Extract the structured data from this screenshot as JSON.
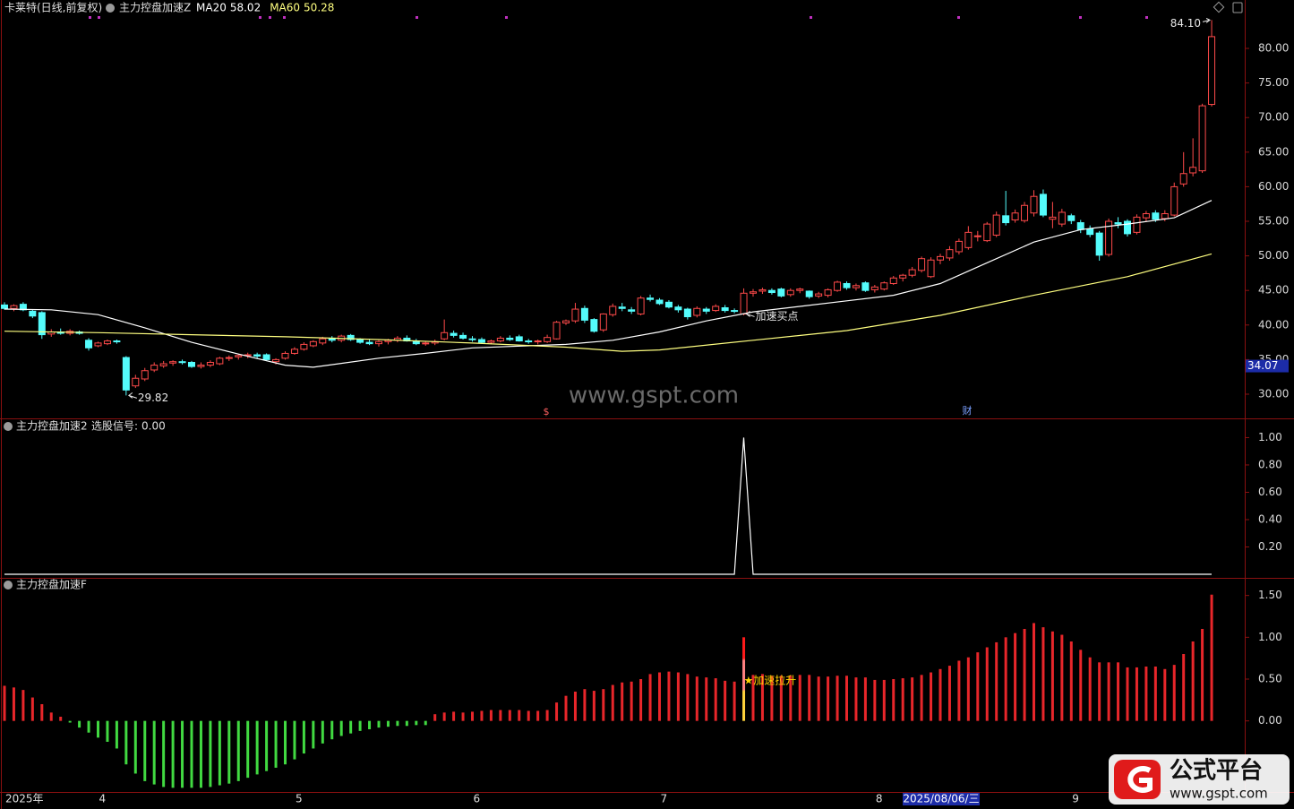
{
  "chart_data": [
    {
      "type": "candlestick",
      "title": "卡莱特(日线,前复权)",
      "indicator": "主力控盘加速Z",
      "ohlc": [
        [
          42.9,
          43.3,
          42.2,
          42.4
        ],
        [
          42.4,
          43.0,
          42.0,
          42.8
        ],
        [
          43.0,
          43.3,
          42.0,
          42.2
        ],
        [
          42.0,
          42.3,
          41.0,
          41.3
        ],
        [
          41.8,
          42.0,
          38.0,
          38.6
        ],
        [
          38.7,
          39.4,
          38.3,
          39.0
        ],
        [
          39.0,
          39.5,
          38.6,
          38.8
        ],
        [
          38.8,
          39.4,
          38.5,
          39.1
        ],
        [
          39.0,
          39.2,
          38.6,
          38.8
        ],
        [
          37.8,
          38.1,
          36.3,
          36.7
        ],
        [
          37.0,
          37.6,
          36.8,
          37.4
        ],
        [
          37.3,
          37.9,
          37.1,
          37.7
        ],
        [
          37.7,
          37.9,
          37.3,
          37.6
        ],
        [
          35.3,
          35.5,
          29.82,
          30.6
        ],
        [
          31.2,
          32.8,
          30.9,
          32.3
        ],
        [
          32.2,
          33.8,
          31.9,
          33.4
        ],
        [
          33.5,
          34.6,
          33.2,
          34.2
        ],
        [
          34.1,
          34.8,
          33.8,
          34.4
        ],
        [
          34.5,
          34.9,
          34.1,
          34.7
        ],
        [
          34.7,
          35.0,
          34.3,
          34.6
        ],
        [
          34.6,
          34.8,
          33.8,
          34.0
        ],
        [
          34.0,
          34.6,
          33.7,
          34.2
        ],
        [
          34.2,
          34.9,
          33.9,
          34.6
        ],
        [
          34.4,
          35.4,
          34.2,
          35.2
        ],
        [
          35.2,
          35.6,
          34.8,
          35.3
        ],
        [
          35.4,
          35.8,
          35.0,
          35.6
        ],
        [
          35.6,
          36.0,
          35.2,
          35.7
        ],
        [
          35.7,
          36.0,
          35.1,
          35.5
        ],
        [
          35.7,
          35.9,
          34.8,
          35.0
        ],
        [
          34.7,
          35.2,
          34.3,
          35.0
        ],
        [
          35.2,
          36.2,
          35.0,
          35.9
        ],
        [
          35.9,
          36.8,
          35.7,
          36.5
        ],
        [
          36.5,
          37.5,
          36.3,
          37.2
        ],
        [
          37.0,
          37.8,
          36.8,
          37.6
        ],
        [
          37.4,
          38.3,
          37.1,
          38.0
        ],
        [
          38.0,
          38.4,
          37.5,
          37.8
        ],
        [
          37.8,
          38.6,
          37.5,
          38.4
        ],
        [
          38.5,
          38.7,
          37.7,
          37.9
        ],
        [
          37.9,
          38.1,
          37.3,
          37.5
        ],
        [
          37.5,
          37.9,
          37.1,
          37.3
        ],
        [
          37.3,
          37.8,
          36.9,
          37.6
        ],
        [
          37.6,
          38.0,
          37.2,
          37.8
        ],
        [
          37.8,
          38.4,
          37.5,
          38.1
        ],
        [
          38.1,
          38.5,
          37.6,
          37.7
        ],
        [
          37.7,
          38.0,
          37.1,
          37.3
        ],
        [
          37.3,
          37.7,
          37.0,
          37.4
        ],
        [
          37.4,
          37.9,
          37.1,
          37.6
        ],
        [
          38.0,
          40.8,
          37.8,
          38.9
        ],
        [
          38.8,
          39.2,
          38.2,
          38.5
        ],
        [
          38.5,
          38.9,
          37.9,
          38.1
        ],
        [
          38.0,
          38.4,
          37.6,
          37.9
        ],
        [
          37.9,
          38.2,
          37.3,
          37.5
        ],
        [
          37.5,
          37.9,
          37.2,
          37.7
        ],
        [
          37.7,
          38.4,
          37.5,
          38.1
        ],
        [
          38.1,
          38.5,
          37.7,
          37.9
        ],
        [
          38.3,
          38.6,
          37.6,
          37.7
        ],
        [
          37.7,
          38.0,
          37.3,
          37.6
        ],
        [
          37.6,
          37.9,
          37.2,
          37.7
        ],
        [
          37.6,
          38.6,
          37.4,
          38.2
        ],
        [
          38.0,
          40.6,
          37.9,
          40.4
        ],
        [
          40.3,
          40.8,
          40.0,
          40.6
        ],
        [
          40.6,
          43.2,
          40.3,
          42.3
        ],
        [
          42.4,
          42.8,
          40.3,
          40.7
        ],
        [
          40.8,
          41.0,
          38.9,
          39.1
        ],
        [
          39.3,
          41.7,
          39.0,
          41.6
        ],
        [
          41.5,
          43.1,
          41.2,
          42.7
        ],
        [
          42.6,
          43.2,
          42.0,
          42.4
        ],
        [
          42.2,
          42.6,
          41.6,
          42.0
        ],
        [
          41.6,
          44.2,
          41.4,
          43.9
        ],
        [
          43.9,
          44.4,
          43.4,
          43.7
        ],
        [
          43.6,
          43.9,
          42.9,
          43.1
        ],
        [
          43.3,
          43.6,
          42.4,
          42.6
        ],
        [
          42.6,
          42.9,
          41.8,
          42.2
        ],
        [
          42.3,
          42.5,
          40.8,
          41.2
        ],
        [
          41.4,
          42.7,
          41.1,
          42.4
        ],
        [
          42.3,
          42.6,
          41.6,
          42.0
        ],
        [
          42.1,
          43.0,
          41.9,
          42.7
        ],
        [
          42.5,
          42.9,
          41.8,
          42.1
        ],
        [
          42.1,
          42.4,
          41.7,
          42.0
        ],
        [
          41.6,
          45.3,
          41.4,
          44.6
        ],
        [
          44.6,
          45.2,
          44.1,
          44.8
        ],
        [
          44.9,
          45.4,
          44.5,
          45.1
        ],
        [
          45.0,
          45.3,
          44.4,
          44.7
        ],
        [
          45.2,
          45.4,
          44.0,
          44.2
        ],
        [
          44.4,
          45.3,
          44.1,
          45.0
        ],
        [
          45.0,
          45.4,
          44.6,
          45.2
        ],
        [
          44.9,
          45.0,
          43.8,
          44.1
        ],
        [
          44.2,
          44.8,
          43.9,
          44.5
        ],
        [
          44.3,
          45.3,
          44.0,
          45.1
        ],
        [
          45.0,
          46.4,
          44.8,
          46.2
        ],
        [
          46.0,
          46.3,
          45.1,
          45.4
        ],
        [
          45.4,
          46.0,
          45.0,
          45.7
        ],
        [
          46.1,
          46.3,
          44.8,
          45.0
        ],
        [
          45.1,
          45.8,
          44.7,
          45.5
        ],
        [
          45.2,
          46.3,
          45.0,
          46.1
        ],
        [
          46.0,
          47.1,
          45.8,
          46.8
        ],
        [
          46.8,
          47.4,
          46.3,
          47.2
        ],
        [
          47.2,
          48.4,
          46.9,
          48.0
        ],
        [
          47.9,
          49.9,
          47.6,
          49.6
        ],
        [
          47.0,
          49.8,
          46.8,
          49.4
        ],
        [
          49.4,
          50.3,
          48.8,
          49.9
        ],
        [
          49.7,
          51.4,
          49.3,
          50.9
        ],
        [
          50.6,
          52.5,
          50.2,
          52.1
        ],
        [
          51.2,
          54.3,
          50.9,
          53.4
        ],
        [
          52.8,
          53.6,
          52.1,
          52.9
        ],
        [
          52.2,
          54.9,
          52.0,
          54.6
        ],
        [
          53.0,
          56.4,
          52.7,
          55.9
        ],
        [
          55.8,
          59.4,
          54.4,
          54.8
        ],
        [
          55.2,
          56.7,
          54.8,
          56.2
        ],
        [
          55.1,
          57.8,
          54.8,
          57.3
        ],
        [
          56.2,
          59.5,
          55.7,
          58.6
        ],
        [
          58.9,
          59.6,
          55.6,
          55.9
        ],
        [
          55.3,
          57.8,
          54.0,
          55.6
        ],
        [
          54.6,
          56.8,
          54.2,
          56.3
        ],
        [
          55.8,
          56.1,
          54.6,
          55.1
        ],
        [
          54.8,
          55.2,
          53.3,
          53.8
        ],
        [
          53.9,
          54.4,
          52.7,
          53.1
        ],
        [
          53.3,
          53.6,
          49.3,
          50.1
        ],
        [
          50.2,
          55.4,
          49.9,
          55.0
        ],
        [
          54.8,
          55.6,
          54.0,
          54.6
        ],
        [
          55.0,
          55.3,
          52.8,
          53.2
        ],
        [
          53.4,
          56.0,
          53.1,
          55.6
        ],
        [
          55.5,
          56.5,
          54.9,
          56.1
        ],
        [
          56.2,
          56.6,
          54.9,
          55.3
        ],
        [
          55.4,
          56.6,
          55.0,
          56.1
        ],
        [
          55.9,
          60.6,
          55.7,
          60.0
        ],
        [
          60.4,
          65.0,
          60.0,
          61.9
        ],
        [
          62.0,
          67.0,
          61.5,
          62.8
        ],
        [
          62.3,
          72.0,
          62.0,
          71.7
        ],
        [
          71.9,
          84.1,
          71.6,
          81.7
        ]
      ],
      "up_color": "#ff4a4a",
      "down_color": "#54fcfc",
      "series": [
        {
          "name": "MA20",
          "color": "#ffffff",
          "x": [
            0,
            5,
            10,
            15,
            20,
            25,
            30,
            33,
            40,
            45,
            50,
            60,
            65,
            70,
            75,
            80,
            85,
            90,
            95,
            100,
            105,
            110,
            115,
            120,
            125,
            129
          ],
          "values": [
            42.3,
            42.2,
            41.5,
            39.6,
            37.5,
            35.8,
            34.2,
            33.9,
            35.2,
            35.9,
            36.7,
            37.2,
            37.8,
            39.0,
            40.6,
            41.9,
            42.7,
            43.5,
            44.3,
            46.0,
            49.0,
            52.0,
            53.8,
            54.6,
            55.5,
            58.02
          ]
        },
        {
          "name": "MA60",
          "color": "#ffff80",
          "x": [
            0,
            10,
            20,
            30,
            40,
            50,
            60,
            66,
            70,
            80,
            90,
            100,
            110,
            120,
            129
          ],
          "values": [
            39.1,
            38.9,
            38.6,
            38.3,
            37.9,
            37.4,
            36.8,
            36.2,
            36.4,
            37.8,
            39.2,
            41.4,
            44.3,
            47.0,
            50.28
          ]
        }
      ],
      "ylim": [
        26.5,
        87.0
      ],
      "yticks": [
        {
          "value": 30,
          "label": "30.00"
        },
        {
          "value": 35,
          "label": "35.00"
        },
        {
          "value": 40,
          "label": "40.00"
        },
        {
          "value": 45,
          "label": "45.00"
        },
        {
          "value": 50,
          "label": "50.00"
        },
        {
          "value": 55,
          "label": "55.00"
        },
        {
          "value": 60,
          "label": "60.00"
        },
        {
          "value": 65,
          "label": "65.00"
        },
        {
          "value": 70,
          "label": "70.00"
        },
        {
          "value": 75,
          "label": "75.00"
        },
        {
          "value": 80,
          "label": "80.00"
        }
      ],
      "annotations": [
        {
          "text": "84.10",
          "x": 129,
          "y": 84.1,
          "side": "left"
        },
        {
          "text": "29.82",
          "x": 13,
          "y": 29.82,
          "side": "right"
        },
        {
          "text": "加速买点",
          "x": 79,
          "y": 41.6,
          "side": "right"
        }
      ],
      "cursor_price": 34.07,
      "markers": [
        "$",
        "财"
      ],
      "watermark": "www.gspt.com"
    },
    {
      "type": "line",
      "title": "主力控盘加速2",
      "series": [
        {
          "name": "选股信号:",
          "cursor_value_label": "0.00",
          "color": "#ffffff",
          "x": [
            0,
            78,
            79,
            80,
            129
          ],
          "values": [
            0,
            0,
            1,
            0,
            0
          ]
        }
      ],
      "ylim": [
        -0.026,
        1.134
      ],
      "yticks": [
        {
          "value": 0.2,
          "label": "0.20"
        },
        {
          "value": 0.4,
          "label": "0.40"
        },
        {
          "value": 0.6,
          "label": "0.60"
        },
        {
          "value": 0.8,
          "label": "0.80"
        },
        {
          "value": 1,
          "label": "1.00"
        }
      ]
    },
    {
      "type": "bar",
      "title": "主力控盘加速F",
      "values": [
        0.42,
        0.4,
        0.37,
        0.28,
        0.2,
        0.1,
        0.05,
        -0.02,
        -0.08,
        -0.14,
        -0.2,
        -0.25,
        -0.33,
        -0.52,
        -0.63,
        -0.72,
        -0.76,
        -0.79,
        -0.8,
        -0.8,
        -0.8,
        -0.8,
        -0.79,
        -0.77,
        -0.75,
        -0.72,
        -0.68,
        -0.64,
        -0.6,
        -0.56,
        -0.52,
        -0.46,
        -0.39,
        -0.33,
        -0.27,
        -0.22,
        -0.18,
        -0.15,
        -0.12,
        -0.1,
        -0.08,
        -0.07,
        -0.06,
        -0.06,
        -0.05,
        -0.05,
        0.08,
        0.1,
        0.11,
        0.1,
        0.11,
        0.12,
        0.13,
        0.13,
        0.13,
        0.13,
        0.12,
        0.12,
        0.13,
        0.22,
        0.3,
        0.35,
        0.38,
        0.36,
        0.38,
        0.43,
        0.46,
        0.47,
        0.5,
        0.56,
        0.58,
        0.59,
        0.58,
        0.56,
        0.53,
        0.52,
        0.51,
        0.48,
        0.47,
        1.0,
        0.55,
        0.56,
        0.54,
        0.54,
        0.54,
        0.55,
        0.55,
        0.53,
        0.53,
        0.54,
        0.54,
        0.52,
        0.52,
        0.49,
        0.49,
        0.5,
        0.51,
        0.52,
        0.55,
        0.58,
        0.62,
        0.66,
        0.72,
        0.76,
        0.82,
        0.88,
        0.94,
        1.0,
        1.05,
        1.1,
        1.17,
        1.12,
        1.07,
        1.03,
        0.95,
        0.85,
        0.76,
        0.7,
        0.7,
        0.7,
        0.64,
        0.64,
        0.65,
        0.65,
        0.62,
        0.67,
        0.8,
        0.95,
        1.1,
        1.51
      ],
      "positive_color": "#e8262a",
      "negative_color": "#41d941",
      "annotation": {
        "text": "★加速拉升",
        "x": 79,
        "y": 0.48
      },
      "ylim": [
        -0.85,
        1.7
      ],
      "yticks": [
        {
          "value": 0,
          "label": "0.00"
        },
        {
          "value": 0.5,
          "label": "0.50"
        },
        {
          "value": 1,
          "label": "1.00"
        },
        {
          "value": 1.5,
          "label": "1.50"
        }
      ],
      "categories": [
        "2025年",
        null,
        null,
        null,
        null,
        null,
        null,
        null,
        null,
        null,
        "4",
        null,
        null,
        null,
        null,
        null,
        null,
        null,
        null,
        null,
        null,
        null,
        null,
        null,
        null,
        null,
        null,
        null,
        null,
        null,
        null,
        "5",
        null,
        null,
        null,
        null,
        null,
        null,
        null,
        null,
        null,
        null,
        null,
        null,
        null,
        null,
        null,
        null,
        null,
        null,
        "6",
        null,
        null,
        null,
        null,
        null,
        null,
        null,
        null,
        null,
        null,
        null,
        null,
        null,
        null,
        null,
        null,
        null,
        null,
        null,
        "7",
        null,
        null,
        null,
        null,
        null,
        null,
        null,
        null,
        null,
        null,
        null,
        null,
        null,
        null,
        null,
        null,
        null,
        null,
        null,
        null,
        null,
        null,
        "8",
        null,
        null,
        null,
        null,
        null,
        null,
        null,
        null,
        null,
        null,
        null,
        null,
        null,
        null,
        null,
        null,
        null,
        null,
        null,
        null,
        "9",
        null,
        null,
        null,
        null,
        null,
        null,
        null,
        null,
        null,
        null,
        null,
        null,
        null,
        null,
        null
      ],
      "cursor_label": "2025/08/06/三"
    }
  ],
  "logo": {
    "name": "公式平台",
    "url": "www.gspt.com"
  }
}
